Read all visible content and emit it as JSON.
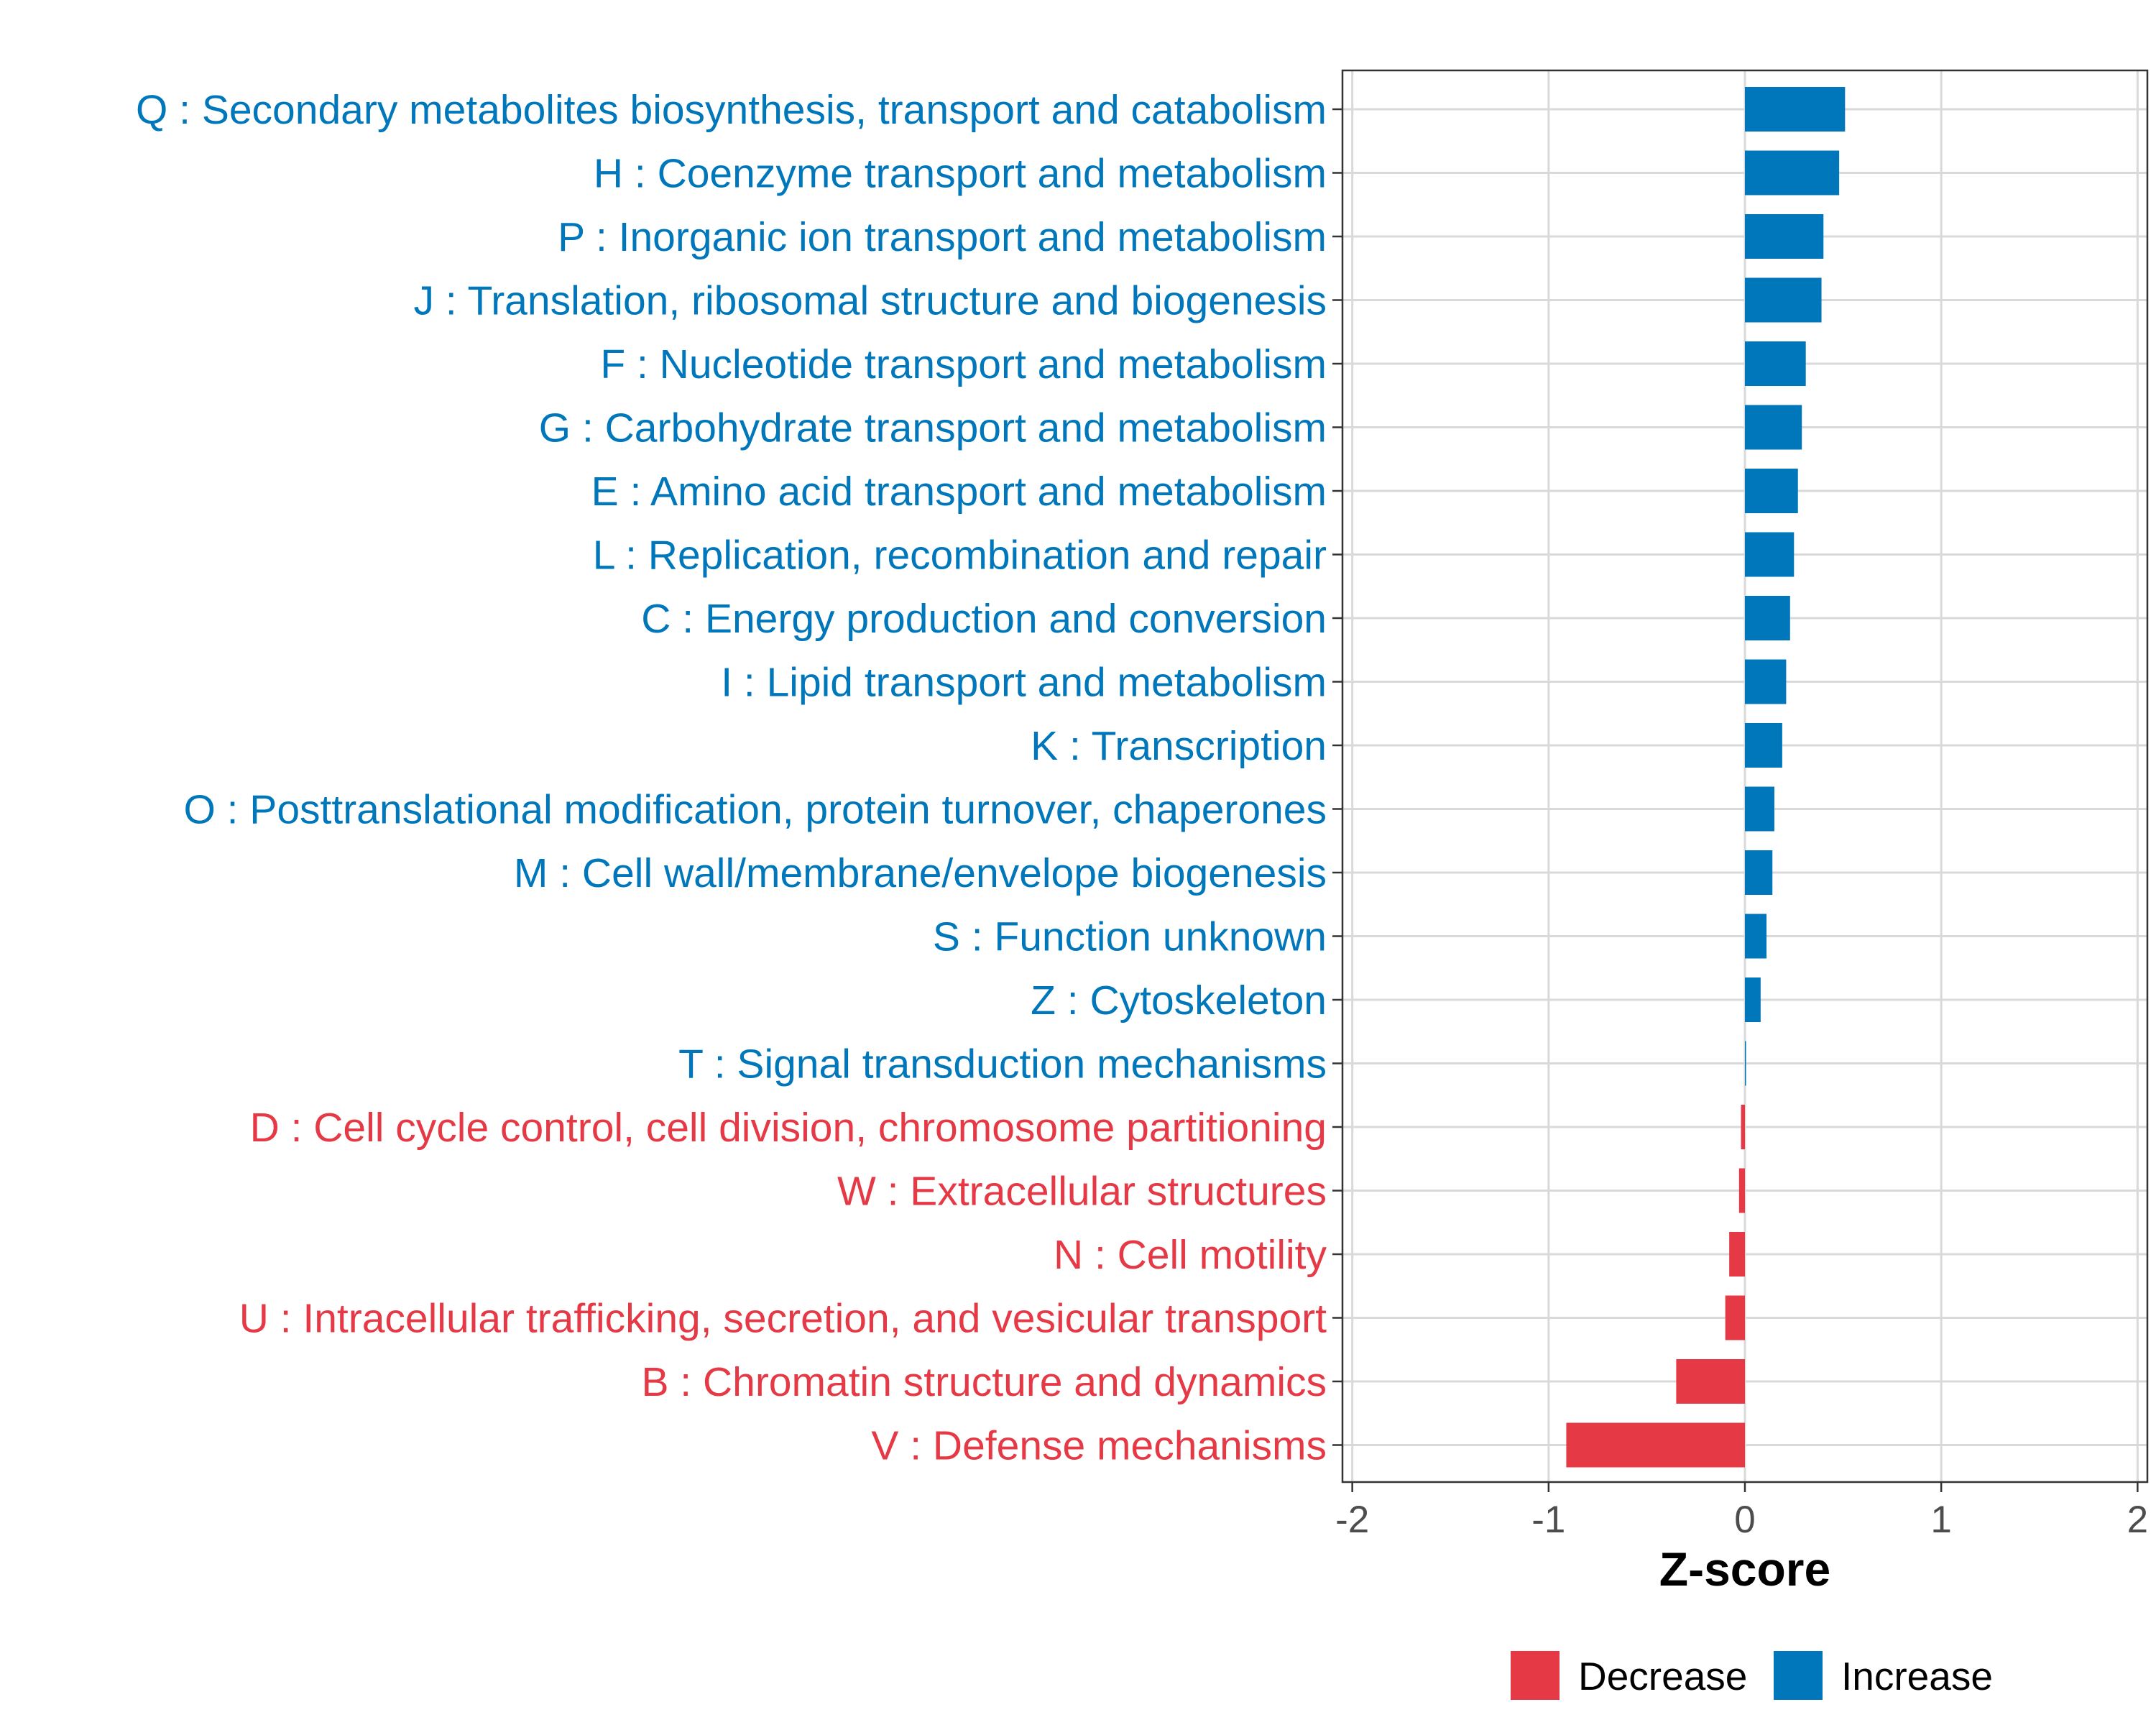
{
  "chart_data": {
    "type": "bar",
    "orientation": "horizontal",
    "xlabel": "Z-score",
    "ylabel": "",
    "xlim": [
      -2.05,
      2.05
    ],
    "x_ticks": [
      -2,
      -1,
      0,
      1,
      2
    ],
    "x_tick_labels": [
      "-2",
      "-1",
      "0",
      "1",
      "2"
    ],
    "grid": true,
    "legend_position": "bottom",
    "colors": {
      "Decrease": "#e63946",
      "Increase": "#0077bb"
    },
    "legend": [
      {
        "label": "Decrease",
        "color": "#e63946"
      },
      {
        "label": "Increase",
        "color": "#0077bb"
      }
    ],
    "categories": [
      {
        "label": "Q : Secondary metabolites biosynthesis, transport and catabolism",
        "value": 0.51,
        "group": "Increase"
      },
      {
        "label": "H : Coenzyme transport and metabolism",
        "value": 0.48,
        "group": "Increase"
      },
      {
        "label": "P : Inorganic ion transport and metabolism",
        "value": 0.4,
        "group": "Increase"
      },
      {
        "label": "J : Translation, ribosomal structure and biogenesis",
        "value": 0.39,
        "group": "Increase"
      },
      {
        "label": "F : Nucleotide transport and metabolism",
        "value": 0.31,
        "group": "Increase"
      },
      {
        "label": "G : Carbohydrate transport and metabolism",
        "value": 0.29,
        "group": "Increase"
      },
      {
        "label": "E : Amino acid transport and metabolism",
        "value": 0.27,
        "group": "Increase"
      },
      {
        "label": "L : Replication, recombination and repair",
        "value": 0.25,
        "group": "Increase"
      },
      {
        "label": "C : Energy production and conversion",
        "value": 0.23,
        "group": "Increase"
      },
      {
        "label": "I : Lipid transport and metabolism",
        "value": 0.21,
        "group": "Increase"
      },
      {
        "label": "K : Transcription",
        "value": 0.19,
        "group": "Increase"
      },
      {
        "label": "O : Posttranslational modification, protein turnover, chaperones",
        "value": 0.15,
        "group": "Increase"
      },
      {
        "label": "M : Cell wall/membrane/envelope biogenesis",
        "value": 0.14,
        "group": "Increase"
      },
      {
        "label": "S : Function unknown",
        "value": 0.11,
        "group": "Increase"
      },
      {
        "label": "Z : Cytoskeleton",
        "value": 0.08,
        "group": "Increase"
      },
      {
        "label": "T : Signal transduction mechanisms",
        "value": 0.005,
        "group": "Increase"
      },
      {
        "label": "D : Cell cycle control, cell division, chromosome partitioning",
        "value": -0.02,
        "group": "Decrease"
      },
      {
        "label": "W : Extracellular structures",
        "value": -0.03,
        "group": "Decrease"
      },
      {
        "label": "N : Cell motility",
        "value": -0.08,
        "group": "Decrease"
      },
      {
        "label": "U : Intracellular trafficking, secretion, and vesicular transport",
        "value": -0.1,
        "group": "Decrease"
      },
      {
        "label": "B : Chromatin structure and dynamics",
        "value": -0.35,
        "group": "Decrease"
      },
      {
        "label": "V : Defense mechanisms",
        "value": -0.91,
        "group": "Decrease"
      }
    ]
  }
}
